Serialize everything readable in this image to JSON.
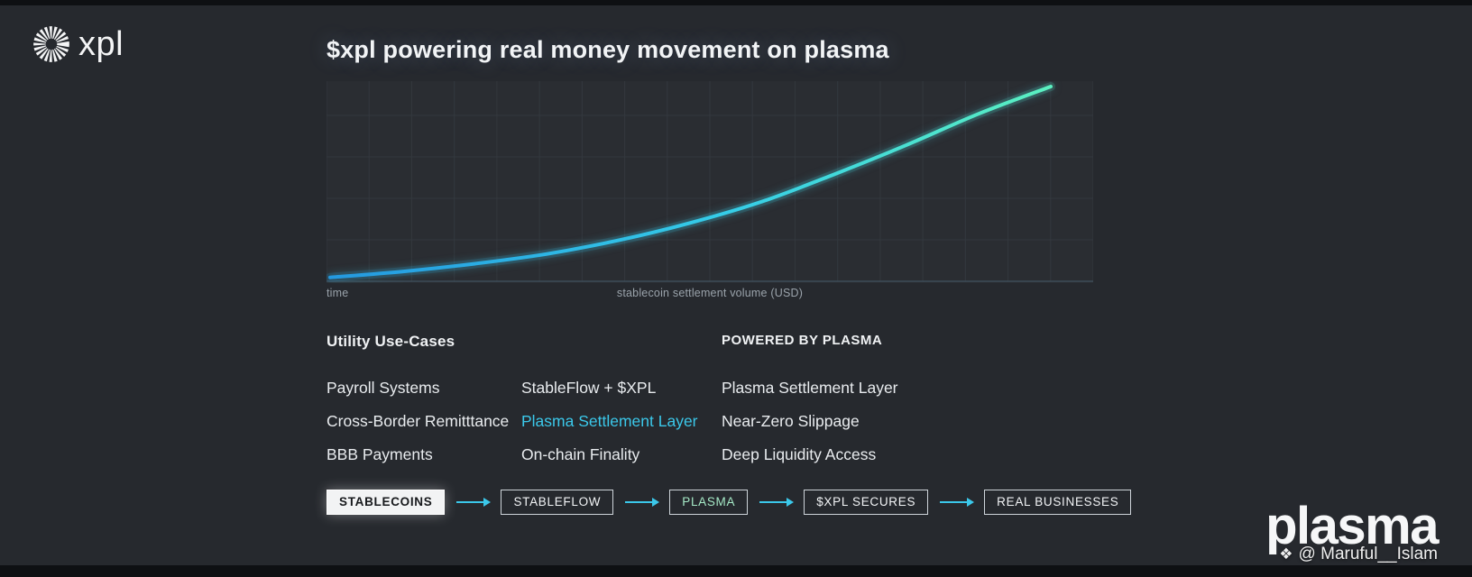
{
  "colors": {
    "bg": "#26292e",
    "strip": "#0e1013",
    "text_primary": "#eceff2",
    "text_muted": "#9aa3ab",
    "accent_cyan": "#3bc8ea",
    "grid": "#33383e",
    "axis": "#41525f",
    "box_border": "#ced4da",
    "flow_first_bg": "#f2f3f4",
    "flow_first_text": "#17191c",
    "plasma_step_text": "#a5e9c6",
    "line_start": "#2499e0",
    "line_mid": "#35cde8",
    "line_end": "#5bf0c0"
  },
  "brand": {
    "logo_text": "xpl"
  },
  "header": {
    "title": "$xpl powering real money movement on plasma"
  },
  "chart": {
    "xlabel": "time",
    "center_label": "stablecoin settlement volume (USD)",
    "chart_data": {
      "type": "line",
      "title": "stablecoin settlement volume growth on plasma",
      "xlabel": "time",
      "ylabel": "stablecoin settlement volume (USD)",
      "x": [
        0,
        1,
        2,
        3,
        4,
        5,
        6,
        7,
        8,
        9,
        10
      ],
      "values": [
        2,
        5,
        9,
        14,
        21,
        30,
        41,
        55,
        70,
        86,
        100
      ],
      "ylim": [
        0,
        100
      ],
      "grid": true,
      "legend": false,
      "line_gradient": [
        "#2499e0",
        "#35cde8",
        "#5bf0c0"
      ]
    }
  },
  "info": {
    "left_header": "Utility Use-Cases",
    "right_header": "POWERED BY PLASMA",
    "rows": [
      {
        "c1": "Payroll Systems",
        "c2": "StableFlow + $XPL",
        "c3": "Plasma Settlement Layer"
      },
      {
        "c1": "Cross-Border Remitttance",
        "c2": "Plasma Settlement Layer",
        "c3": "Near-Zero Slippage"
      },
      {
        "c1": "BBB Payments",
        "c2": "On-chain Finality",
        "c3": "Deep Liquidity Access"
      }
    ]
  },
  "flow": {
    "steps": [
      "STABLECOINS",
      "STABLEFLOW",
      "PLASMA",
      "$XPL SECURES",
      "REAL BUSINESSES"
    ]
  },
  "footer": {
    "logo_text": "plasma",
    "watermark_icon": "❖",
    "watermark": "@ Maruful__Islam"
  }
}
